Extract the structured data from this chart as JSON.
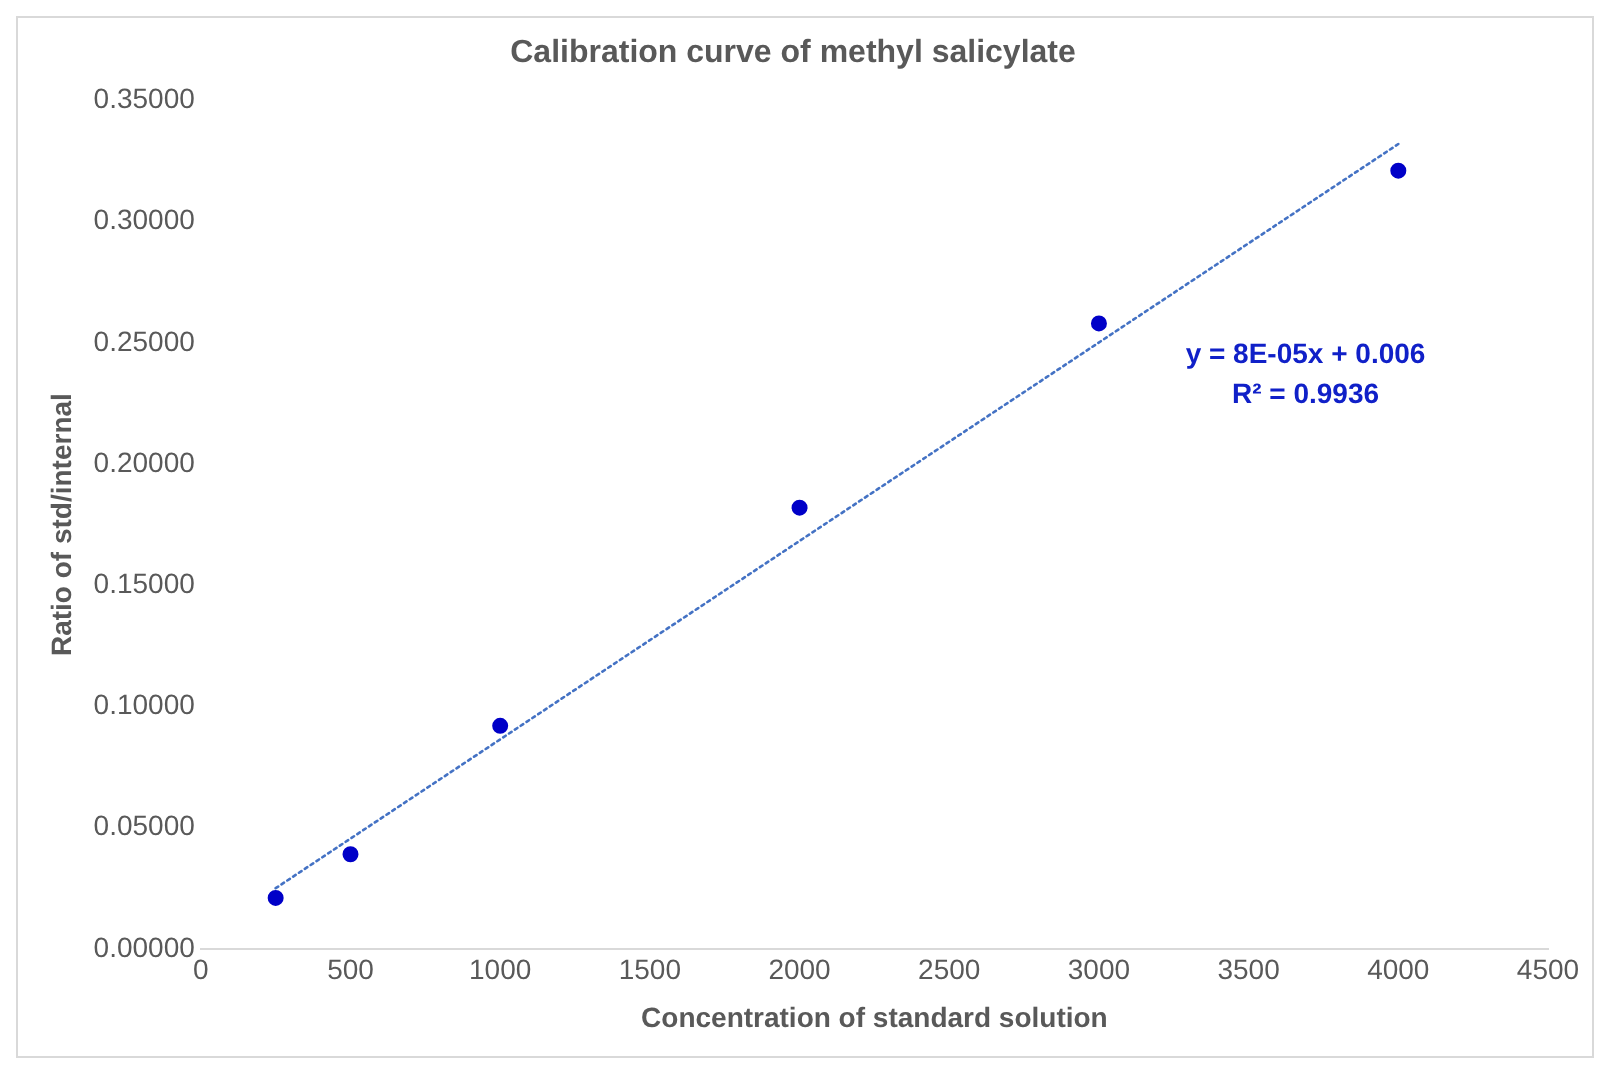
{
  "chart_data": {
    "type": "scatter",
    "title": "Calibration curve of methyl salicylate",
    "xlabel": "Concentration of standard solution",
    "ylabel": "Ratio of std/internal",
    "x": [
      250,
      500,
      1000,
      2000,
      3000,
      4000
    ],
    "series": [
      {
        "color": "#0000c8",
        "values": [
          0.021,
          0.039,
          0.092,
          0.182,
          0.258,
          0.321
        ],
        "marker": "circle"
      },
      {
        "type": "line",
        "color": "#4472c4",
        "x": [
          250,
          4000
        ],
        "values": [
          0.025,
          0.332
        ],
        "line_style": "dotted",
        "marker": "none"
      }
    ],
    "annotations": [
      "y = 8E-05x + 0.006\nR² = 0.9936"
    ],
    "xlim": [
      0,
      4500
    ],
    "xticks": [
      0,
      500,
      1000,
      1500,
      2000,
      2500,
      3000,
      3500,
      4000,
      4500
    ],
    "ylim": [
      0,
      0.35
    ],
    "yticks": [
      {
        "value": 0,
        "label": "0.00000"
      },
      {
        "value": 0.05,
        "label": "0.05000"
      },
      {
        "value": 0.1,
        "label": "0.10000"
      },
      {
        "value": 0.15,
        "label": "0.15000"
      },
      {
        "value": 0.2,
        "label": "0.20000"
      },
      {
        "value": 0.25,
        "label": "0.25000"
      },
      {
        "value": 0.3,
        "label": "0.30000"
      },
      {
        "value": 0.35,
        "label": "0.35000"
      }
    ],
    "grid": false,
    "legend": false
  }
}
